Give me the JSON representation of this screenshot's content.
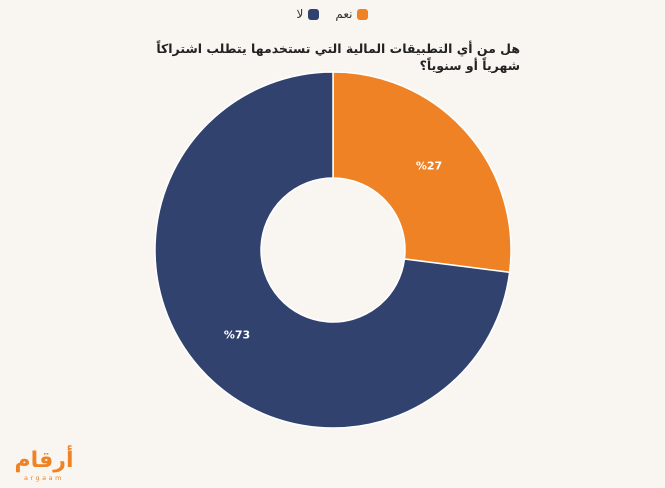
{
  "chart_data": {
    "type": "pie",
    "donut": true,
    "title": "هل من أي التطبيقات المالية التي تستخدمها يتطلب اشتراكاً شهرياً أو سنوياً؟",
    "series": [
      {
        "name": "نعم",
        "value": 27,
        "label": "%27",
        "color": "#ee8224"
      },
      {
        "name": "لا",
        "value": 73,
        "label": "%73",
        "color": "#31426e"
      }
    ],
    "legend_position": "top-center"
  },
  "legend": [
    {
      "label": "نعم",
      "color": "#ee8224"
    },
    {
      "label": "لا",
      "color": "#31426e"
    }
  ],
  "logo": {
    "text": "أرقام",
    "subtext": "argaam"
  }
}
